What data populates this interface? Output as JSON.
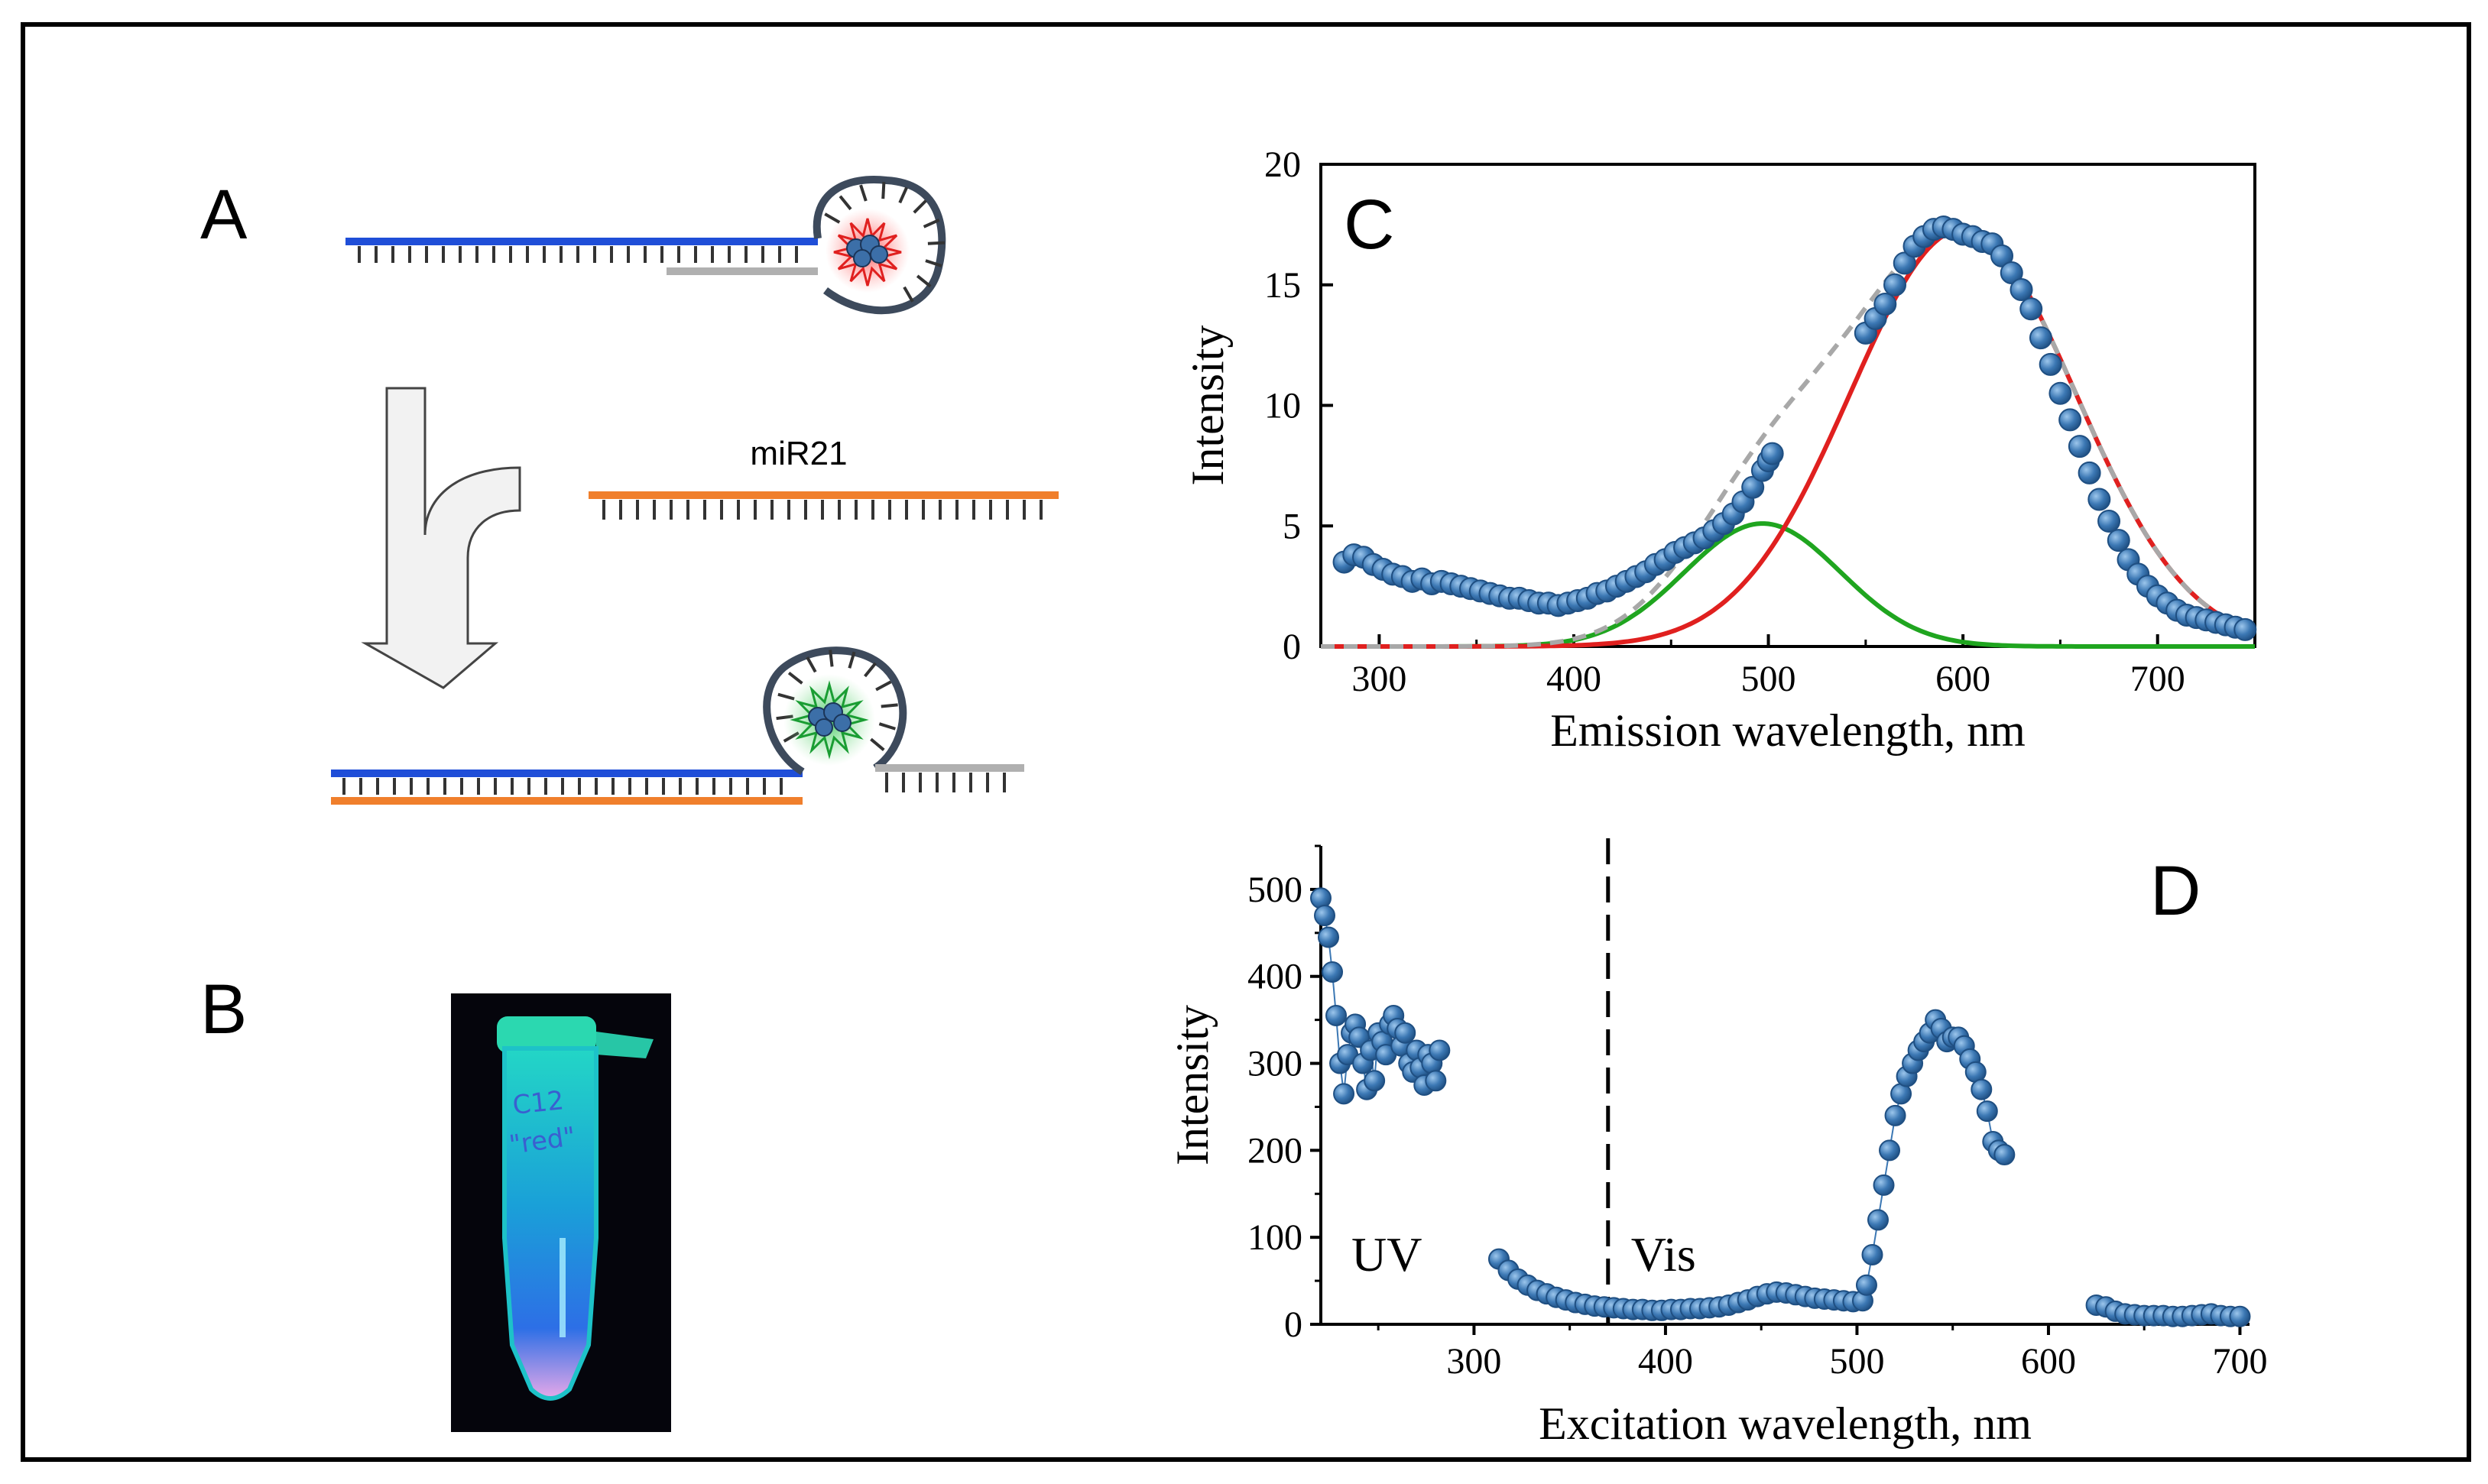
{
  "panels": {
    "a": {
      "letter": "A",
      "target_label": "miR21"
    },
    "b": {
      "letter": "B",
      "tube_text_line1": "C12",
      "tube_text_line2": "\"red\""
    },
    "c": {
      "letter": "C"
    },
    "d": {
      "letter": "D"
    }
  },
  "colors": {
    "blue_strand": "#1f4ed8",
    "orange_strand": "#f07f2c",
    "gray_strand": "#b0b0b0",
    "red_fit": "#e0201f",
    "green_fit": "#1fa51f",
    "dashed_fit": "#a8a8a8",
    "marker_fill": "#3c78b4",
    "marker_edge": "#1f4f82"
  },
  "chart_data": [
    {
      "id": "emission",
      "type": "scatter",
      "title": "",
      "xlabel": "Emission wavelength, nm",
      "ylabel": "Intensity",
      "xlim": [
        270,
        750
      ],
      "ylim": [
        0,
        20
      ],
      "xticks": [
        300,
        400,
        500,
        600,
        700
      ],
      "yticks": [
        0,
        5,
        10,
        15,
        20
      ],
      "measured": {
        "x": [
          282,
          287,
          292,
          297,
          302,
          307,
          312,
          317,
          322,
          327,
          332,
          337,
          342,
          347,
          352,
          357,
          362,
          367,
          372,
          377,
          382,
          387,
          392,
          397,
          402,
          407,
          412,
          417,
          422,
          427,
          432,
          437,
          442,
          447,
          452,
          457,
          462,
          467,
          472,
          477,
          482,
          487,
          492,
          497,
          500,
          502,
          550,
          555,
          560,
          565,
          570,
          575,
          580,
          585,
          590,
          595,
          600,
          605,
          610,
          615,
          620,
          625,
          630,
          635,
          640,
          645,
          650,
          655,
          660,
          665,
          670,
          675,
          680,
          685,
          690,
          695,
          700,
          705,
          710,
          715,
          720,
          725,
          730,
          735,
          740,
          745
        ],
        "y": [
          3.5,
          3.8,
          3.7,
          3.4,
          3.2,
          3.0,
          2.9,
          2.7,
          2.8,
          2.6,
          2.7,
          2.6,
          2.5,
          2.4,
          2.3,
          2.2,
          2.1,
          2.0,
          2.0,
          1.9,
          1.8,
          1.8,
          1.7,
          1.8,
          1.9,
          2.0,
          2.2,
          2.3,
          2.5,
          2.7,
          2.9,
          3.1,
          3.4,
          3.6,
          3.9,
          4.1,
          4.3,
          4.5,
          4.8,
          5.1,
          5.5,
          6.0,
          6.6,
          7.3,
          7.7,
          8.0,
          13.0,
          13.6,
          14.2,
          15.0,
          15.9,
          16.6,
          17.0,
          17.3,
          17.4,
          17.3,
          17.1,
          17.0,
          16.8,
          16.7,
          16.2,
          15.5,
          14.8,
          14.0,
          12.8,
          11.7,
          10.5,
          9.4,
          8.3,
          7.2,
          6.1,
          5.2,
          4.4,
          3.6,
          3.0,
          2.5,
          2.1,
          1.8,
          1.5,
          1.3,
          1.2,
          1.1,
          1.0,
          0.9,
          0.8,
          0.7
        ]
      },
      "fits": [
        {
          "name": "red peak",
          "center": 600,
          "sigma": 58,
          "amplitude": 17.3
        },
        {
          "name": "green peak",
          "center": 497,
          "sigma": 40,
          "amplitude": 5.1
        },
        {
          "name": "sum (dashed)",
          "components": [
            "red peak",
            "green peak"
          ]
        }
      ],
      "panel_label": "C"
    },
    {
      "id": "excitation",
      "type": "scatter",
      "title": "",
      "xlabel": "Excitation wavelength, nm",
      "ylabel": "Intensity",
      "xlim": [
        220,
        705
      ],
      "ylim": [
        0,
        550
      ],
      "xticks": [
        300,
        400,
        500,
        600,
        700
      ],
      "yticks": [
        0,
        100,
        200,
        300,
        400,
        500
      ],
      "divider_x": 370,
      "region_labels": [
        "UV",
        "Vis"
      ],
      "series": [
        {
          "name": "UV",
          "x": [
            220,
            222,
            224,
            226,
            228,
            230,
            232,
            234,
            236,
            238,
            240,
            242,
            244,
            246,
            248,
            250,
            252,
            254,
            256,
            258,
            260,
            262,
            264,
            266,
            268,
            270,
            272,
            274,
            276,
            278,
            280,
            282
          ],
          "y": [
            490,
            470,
            445,
            405,
            355,
            300,
            265,
            310,
            335,
            345,
            330,
            300,
            270,
            315,
            280,
            335,
            325,
            310,
            345,
            355,
            340,
            320,
            335,
            300,
            290,
            315,
            295,
            275,
            310,
            300,
            280,
            315
          ]
        },
        {
          "name": "Vis low",
          "x": [
            313,
            318,
            323,
            328,
            333,
            338,
            343,
            348,
            353,
            358,
            363,
            368,
            373,
            378,
            383,
            388,
            393,
            398,
            403,
            408,
            413,
            418,
            423,
            428,
            433,
            438,
            443,
            448,
            453,
            458,
            463,
            468,
            473,
            478,
            483,
            488,
            493,
            498,
            503
          ],
          "y": [
            75,
            62,
            52,
            45,
            39,
            35,
            31,
            28,
            25,
            23,
            21,
            20,
            19,
            18,
            17,
            17,
            16,
            16,
            17,
            17,
            18,
            18,
            19,
            20,
            22,
            25,
            28,
            32,
            35,
            37,
            36,
            34,
            32,
            30,
            29,
            28,
            27,
            26,
            27
          ]
        },
        {
          "name": "Vis peak",
          "x": [
            505,
            508,
            511,
            514,
            517,
            520,
            523,
            526,
            529,
            532,
            535,
            538,
            541,
            544,
            547,
            550,
            553,
            556,
            559,
            562,
            565,
            568,
            571,
            574,
            577
          ],
          "y": [
            45,
            80,
            120,
            160,
            200,
            240,
            265,
            285,
            300,
            315,
            325,
            335,
            350,
            340,
            325,
            330,
            330,
            320,
            305,
            290,
            270,
            245,
            210,
            200,
            195
          ]
        },
        {
          "name": "Vis tail",
          "x": [
            625,
            630,
            635,
            640,
            645,
            650,
            655,
            660,
            665,
            670,
            675,
            680,
            685,
            690,
            695,
            700
          ],
          "y": [
            22,
            20,
            15,
            12,
            11,
            10,
            10,
            10,
            9,
            9,
            10,
            11,
            12,
            10,
            9,
            9
          ]
        }
      ],
      "panel_label": "D"
    }
  ]
}
